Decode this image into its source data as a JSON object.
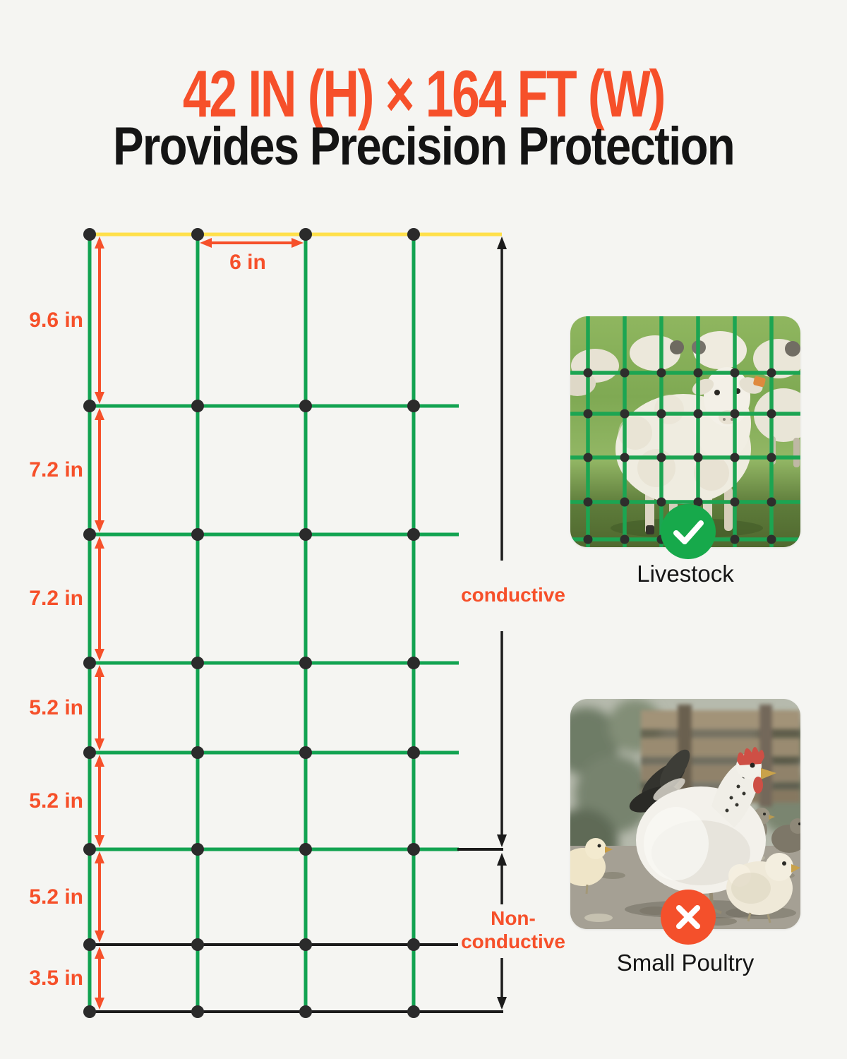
{
  "title": {
    "line1": "42 IN (H) × 164 FT (W)",
    "line2": "Provides Precision Protection"
  },
  "diagram": {
    "top_wire_spacing": "6 in",
    "vertical_spacings": [
      "9.6 in",
      "7.2 in",
      "7.2 in",
      "5.2 in",
      "5.2 in",
      "5.2 in",
      "3.5 in"
    ],
    "conductive_label": "conductive",
    "non_conductive_label_line1": "Non-",
    "non_conductive_label_line2": "conductive"
  },
  "cards": {
    "livestock": {
      "label": "Livestock",
      "icon": "check-icon",
      "badge_color": "#17A94B"
    },
    "small_poultry": {
      "label": "Small Poultry",
      "icon": "x-icon",
      "badge_color": "#F4502B"
    }
  },
  "colors": {
    "background": "#F5F5F2",
    "accent_orange": "#F6502A",
    "wire_green": "#12A351",
    "wire_yellow": "#FFE04A",
    "wire_black": "#1B1B1B",
    "knot_dot": "#2B2B2B"
  }
}
